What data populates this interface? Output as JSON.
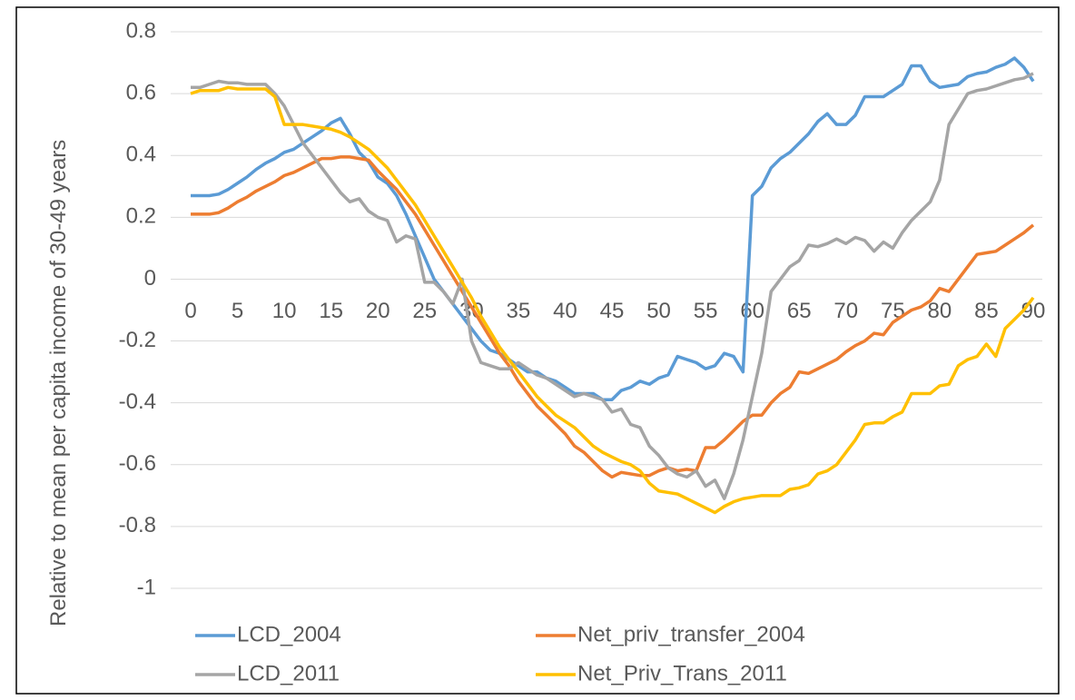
{
  "chart_data": {
    "type": "line",
    "y_label": "Relative to mean per capita income of 30-49 years",
    "x": [
      0,
      1,
      2,
      3,
      4,
      5,
      6,
      7,
      8,
      9,
      10,
      11,
      12,
      13,
      14,
      15,
      16,
      17,
      18,
      19,
      20,
      21,
      22,
      23,
      24,
      25,
      26,
      27,
      28,
      29,
      30,
      31,
      32,
      33,
      34,
      35,
      36,
      37,
      38,
      39,
      40,
      41,
      42,
      43,
      44,
      45,
      46,
      47,
      48,
      49,
      50,
      51,
      52,
      53,
      54,
      55,
      56,
      57,
      58,
      59,
      60,
      61,
      62,
      63,
      64,
      65,
      66,
      67,
      68,
      69,
      70,
      71,
      72,
      73,
      74,
      75,
      76,
      77,
      78,
      79,
      80,
      81,
      82,
      83,
      84,
      85,
      86,
      87,
      88,
      89,
      90
    ],
    "xlim": [
      0,
      90
    ],
    "xticks": [
      0,
      5,
      10,
      15,
      20,
      25,
      30,
      35,
      40,
      45,
      50,
      55,
      60,
      65,
      70,
      75,
      80,
      85,
      90
    ],
    "ylim": [
      -1,
      0.8
    ],
    "yticks": [
      -1,
      -0.8,
      -0.6,
      -0.4,
      -0.2,
      0,
      0.2,
      0.4,
      0.6,
      0.8
    ],
    "grid": true,
    "legend": "bottom",
    "series": [
      {
        "name": "LCD_2004",
        "color": "#5b9bd5",
        "values": [
          0.27,
          0.27,
          0.27,
          0.275,
          0.29,
          0.31,
          0.33,
          0.355,
          0.375,
          0.39,
          0.41,
          0.42,
          0.44,
          0.46,
          0.48,
          0.505,
          0.52,
          0.47,
          0.41,
          0.38,
          0.33,
          0.31,
          0.27,
          0.21,
          0.14,
          0.07,
          0.0,
          -0.04,
          -0.08,
          -0.12,
          -0.16,
          -0.2,
          -0.23,
          -0.24,
          -0.26,
          -0.28,
          -0.3,
          -0.3,
          -0.32,
          -0.33,
          -0.35,
          -0.37,
          -0.37,
          -0.37,
          -0.39,
          -0.39,
          -0.36,
          -0.35,
          -0.33,
          -0.34,
          -0.32,
          -0.31,
          -0.25,
          -0.26,
          -0.27,
          -0.29,
          -0.28,
          -0.24,
          -0.25,
          -0.3,
          0.27,
          0.3,
          0.36,
          0.39,
          0.41,
          0.44,
          0.47,
          0.51,
          0.535,
          0.5,
          0.5,
          0.53,
          0.59,
          0.59,
          0.59,
          0.61,
          0.63,
          0.69,
          0.69,
          0.64,
          0.62,
          0.625,
          0.63,
          0.655,
          0.665,
          0.67,
          0.685,
          0.695,
          0.715,
          0.685,
          0.64
        ]
      },
      {
        "name": "Net_priv_transfer_2004",
        "color": "#ed7d31",
        "values": [
          0.21,
          0.21,
          0.21,
          0.215,
          0.23,
          0.25,
          0.265,
          0.285,
          0.3,
          0.315,
          0.335,
          0.345,
          0.36,
          0.375,
          0.39,
          0.39,
          0.395,
          0.395,
          0.39,
          0.385,
          0.35,
          0.32,
          0.29,
          0.25,
          0.21,
          0.16,
          0.11,
          0.06,
          0.01,
          -0.04,
          -0.09,
          -0.14,
          -0.19,
          -0.24,
          -0.28,
          -0.33,
          -0.37,
          -0.41,
          -0.44,
          -0.47,
          -0.5,
          -0.54,
          -0.56,
          -0.59,
          -0.62,
          -0.64,
          -0.625,
          -0.63,
          -0.635,
          -0.635,
          -0.62,
          -0.61,
          -0.62,
          -0.615,
          -0.62,
          -0.545,
          -0.545,
          -0.52,
          -0.49,
          -0.46,
          -0.44,
          -0.44,
          -0.4,
          -0.37,
          -0.35,
          -0.3,
          -0.305,
          -0.29,
          -0.275,
          -0.26,
          -0.235,
          -0.215,
          -0.2,
          -0.175,
          -0.18,
          -0.14,
          -0.12,
          -0.1,
          -0.09,
          -0.07,
          -0.03,
          -0.04,
          0.0,
          0.04,
          0.08,
          0.085,
          0.09,
          0.11,
          0.13,
          0.15,
          0.175
        ]
      },
      {
        "name": "LCD_2011",
        "color": "#a5a5a5",
        "values": [
          0.62,
          0.62,
          0.63,
          0.64,
          0.635,
          0.635,
          0.63,
          0.63,
          0.63,
          0.6,
          0.56,
          0.5,
          0.44,
          0.4,
          0.36,
          0.32,
          0.28,
          0.25,
          0.26,
          0.22,
          0.2,
          0.19,
          0.12,
          0.14,
          0.13,
          -0.01,
          -0.01,
          -0.04,
          -0.08,
          0.0,
          -0.2,
          -0.27,
          -0.28,
          -0.29,
          -0.29,
          -0.27,
          -0.29,
          -0.31,
          -0.32,
          -0.34,
          -0.36,
          -0.38,
          -0.37,
          -0.38,
          -0.39,
          -0.43,
          -0.42,
          -0.47,
          -0.48,
          -0.54,
          -0.57,
          -0.61,
          -0.63,
          -0.64,
          -0.62,
          -0.67,
          -0.65,
          -0.71,
          -0.63,
          -0.52,
          -0.38,
          -0.24,
          -0.04,
          0.0,
          0.04,
          0.06,
          0.11,
          0.105,
          0.115,
          0.13,
          0.115,
          0.135,
          0.125,
          0.09,
          0.12,
          0.1,
          0.15,
          0.19,
          0.22,
          0.25,
          0.32,
          0.5,
          0.55,
          0.6,
          0.61,
          0.615,
          0.625,
          0.635,
          0.645,
          0.65,
          0.665
        ]
      },
      {
        "name": "Net_Priv_Trans_2011",
        "color": "#ffc000",
        "values": [
          0.6,
          0.61,
          0.61,
          0.61,
          0.62,
          0.615,
          0.615,
          0.615,
          0.615,
          0.59,
          0.5,
          0.5,
          0.5,
          0.495,
          0.49,
          0.485,
          0.475,
          0.46,
          0.44,
          0.42,
          0.39,
          0.36,
          0.32,
          0.28,
          0.24,
          0.19,
          0.14,
          0.09,
          0.04,
          -0.01,
          -0.06,
          -0.12,
          -0.17,
          -0.22,
          -0.26,
          -0.3,
          -0.34,
          -0.38,
          -0.41,
          -0.44,
          -0.46,
          -0.48,
          -0.51,
          -0.54,
          -0.56,
          -0.575,
          -0.59,
          -0.6,
          -0.62,
          -0.66,
          -0.685,
          -0.69,
          -0.695,
          -0.71,
          -0.725,
          -0.74,
          -0.755,
          -0.735,
          -0.72,
          -0.71,
          -0.705,
          -0.7,
          -0.7,
          -0.7,
          -0.68,
          -0.675,
          -0.665,
          -0.63,
          -0.62,
          -0.6,
          -0.56,
          -0.52,
          -0.47,
          -0.465,
          -0.465,
          -0.445,
          -0.43,
          -0.37,
          -0.37,
          -0.37,
          -0.345,
          -0.34,
          -0.28,
          -0.26,
          -0.25,
          -0.21,
          -0.25,
          -0.16,
          -0.13,
          -0.1,
          -0.06
        ]
      }
    ]
  }
}
